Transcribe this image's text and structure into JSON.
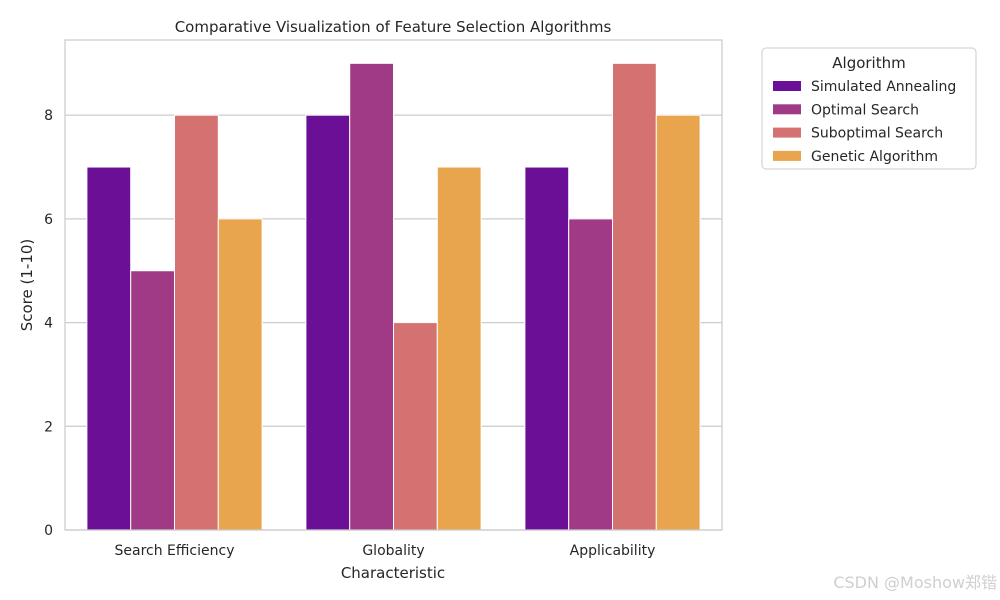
{
  "chart_data": {
    "type": "bar",
    "title": "Comparative Visualization of Feature Selection Algorithms",
    "xlabel": "Characteristic",
    "ylabel": "Score (1-10)",
    "categories": [
      "Search Efficiency",
      "Globality",
      "Applicability"
    ],
    "series": [
      {
        "name": "Simulated Annealing",
        "values": [
          7,
          8,
          7
        ],
        "color": "#6a0f96"
      },
      {
        "name": "Optimal Search",
        "values": [
          5,
          9,
          6
        ],
        "color": "#a03a87"
      },
      {
        "name": "Suboptimal Search",
        "values": [
          8,
          4,
          9
        ],
        "color": "#d37270"
      },
      {
        "name": "Genetic Algorithm",
        "values": [
          6,
          7,
          8
        ],
        "color": "#e9a54d"
      }
    ],
    "ylim": [
      0,
      9.45
    ],
    "yticks": [
      0,
      2,
      4,
      6,
      8
    ],
    "grid": true,
    "legend": {
      "title": "Algorithm",
      "placement": "outside-top-right"
    }
  },
  "watermark": "CSDN @Moshow郑锴"
}
